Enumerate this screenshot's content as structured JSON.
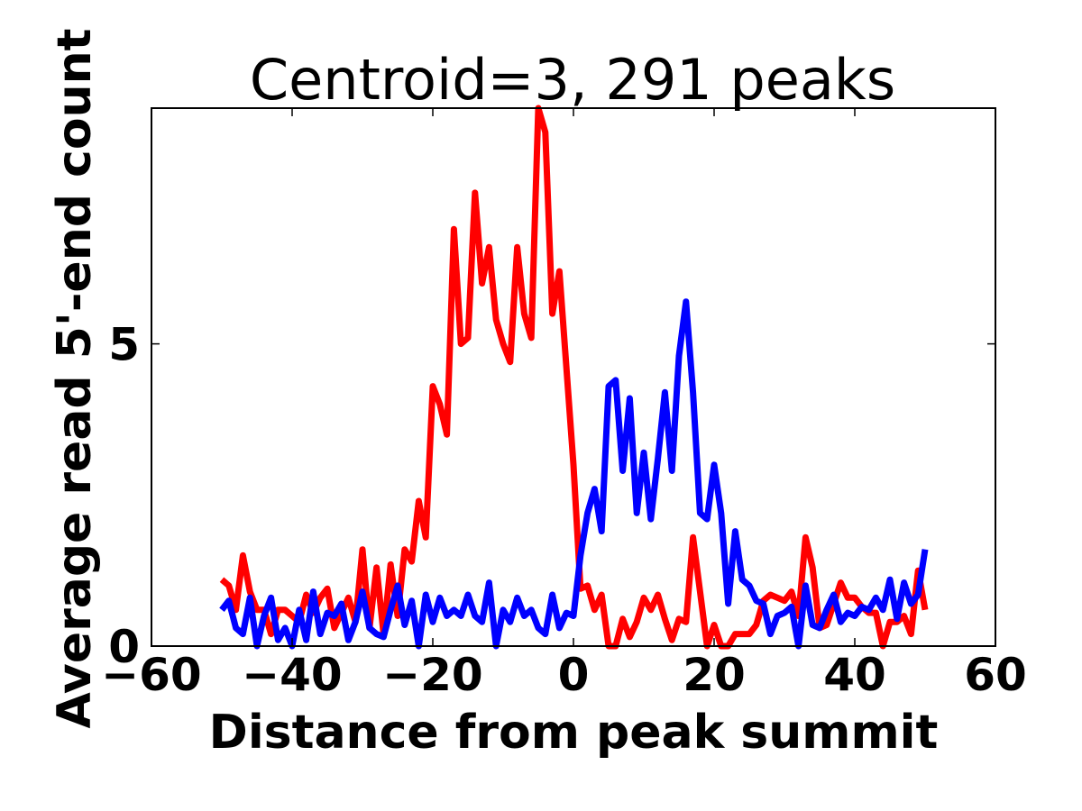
{
  "chart_data": {
    "type": "line",
    "title": "Centroid=3, 291 peaks",
    "xlabel": "Distance from peak summit",
    "ylabel": "Average read 5'-end count",
    "xlim": [
      -60,
      60
    ],
    "ylim": [
      0,
      8.9
    ],
    "xticks": [
      -60,
      -40,
      -20,
      0,
      20,
      40,
      60
    ],
    "xtick_labels": [
      "−60",
      "−40",
      "−20",
      "0",
      "20",
      "40",
      "60"
    ],
    "yticks": [
      0,
      5
    ],
    "ytick_labels": [
      "0",
      "5"
    ],
    "grid": false,
    "legend": "none",
    "x": [
      -50,
      -49,
      -48,
      -47,
      -46,
      -45,
      -44,
      -43,
      -42,
      -41,
      -40,
      -39,
      -38,
      -37,
      -36,
      -35,
      -34,
      -33,
      -32,
      -31,
      -30,
      -29,
      -28,
      -27,
      -26,
      -25,
      -24,
      -23,
      -22,
      -21,
      -20,
      -19,
      -18,
      -17,
      -16,
      -15,
      -14,
      -13,
      -12,
      -11,
      -10,
      -9,
      -8,
      -7,
      -6,
      -5,
      -4,
      -3,
      -2,
      -1,
      0,
      1,
      2,
      3,
      4,
      5,
      6,
      7,
      8,
      9,
      10,
      11,
      12,
      13,
      14,
      15,
      16,
      17,
      18,
      19,
      20,
      21,
      22,
      23,
      24,
      25,
      26,
      27,
      28,
      29,
      30,
      31,
      32,
      33,
      34,
      35,
      36,
      37,
      38,
      39,
      40,
      41,
      42,
      43,
      44,
      45,
      46,
      47,
      48,
      49,
      50
    ],
    "series": [
      {
        "color": "#ff0000",
        "values": [
          1.1,
          1.0,
          0.6,
          1.5,
          0.9,
          0.6,
          0.6,
          0.2,
          0.6,
          0.6,
          0.5,
          0.4,
          0.85,
          0.55,
          0.8,
          0.95,
          0.3,
          0.55,
          0.8,
          0.4,
          1.6,
          0.3,
          1.3,
          0.2,
          1.35,
          0.5,
          1.6,
          1.4,
          2.4,
          1.8,
          4.3,
          4.0,
          3.5,
          6.9,
          5.0,
          5.1,
          7.5,
          6.0,
          6.6,
          5.4,
          5.0,
          4.7,
          6.6,
          5.5,
          5.1,
          8.9,
          8.5,
          5.5,
          6.2,
          4.6,
          3.0,
          0.95,
          1.0,
          0.6,
          0.85,
          0.0,
          0.0,
          0.45,
          0.15,
          0.4,
          0.8,
          0.6,
          0.85,
          0.45,
          0.1,
          0.45,
          0.4,
          1.8,
          0.9,
          0.0,
          0.35,
          0.0,
          0.0,
          0.2,
          0.2,
          0.2,
          0.35,
          0.75,
          0.85,
          0.8,
          0.75,
          0.9,
          0.5,
          1.8,
          1.3,
          0.3,
          0.35,
          0.7,
          1.05,
          0.8,
          0.8,
          0.65,
          0.55,
          0.55,
          0.0,
          0.4,
          0.4,
          0.5,
          0.2,
          1.25,
          0.6
        ]
      },
      {
        "color": "#0000ff",
        "values": [
          0.6,
          0.75,
          0.3,
          0.2,
          0.8,
          0.0,
          0.5,
          0.8,
          0.1,
          0.3,
          0.0,
          0.6,
          0.1,
          0.9,
          0.2,
          0.55,
          0.5,
          0.7,
          0.1,
          0.4,
          0.9,
          0.3,
          0.2,
          0.15,
          0.6,
          1.0,
          0.35,
          0.75,
          0.0,
          0.85,
          0.4,
          0.8,
          0.5,
          0.6,
          0.5,
          0.85,
          0.5,
          0.4,
          1.05,
          0.0,
          0.6,
          0.4,
          0.8,
          0.5,
          0.6,
          0.3,
          0.2,
          0.85,
          0.3,
          0.55,
          0.5,
          1.5,
          2.2,
          2.6,
          1.9,
          4.3,
          4.4,
          2.9,
          4.1,
          2.2,
          3.2,
          2.1,
          3.1,
          4.2,
          2.9,
          4.8,
          5.7,
          4.2,
          2.2,
          2.1,
          3.0,
          2.2,
          0.7,
          1.9,
          1.1,
          1.0,
          0.75,
          0.7,
          0.2,
          0.5,
          0.55,
          0.65,
          0.0,
          1.0,
          0.35,
          0.3,
          0.6,
          0.85,
          0.4,
          0.55,
          0.5,
          0.65,
          0.6,
          0.8,
          0.6,
          1.1,
          0.45,
          1.05,
          0.7,
          0.85,
          1.6
        ]
      }
    ]
  }
}
